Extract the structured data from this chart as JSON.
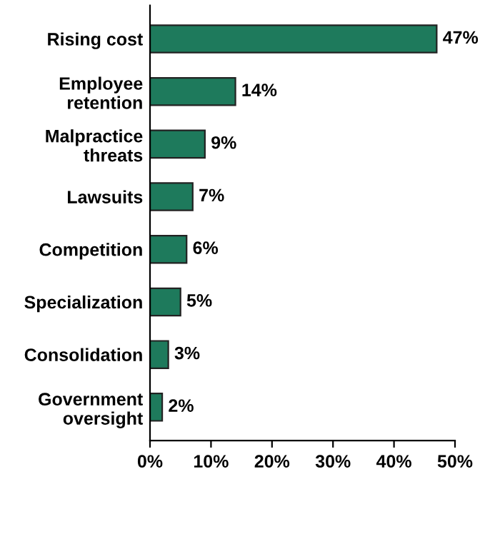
{
  "chart_data": {
    "type": "bar",
    "orientation": "horizontal",
    "categories": [
      "Rising cost",
      "Employee\nretention",
      "Malpractice\nthreats",
      "Lawsuits",
      "Competition",
      "Specialization",
      "Consolidation",
      "Government\noversight"
    ],
    "values": [
      47,
      14,
      9,
      7,
      6,
      5,
      3,
      2
    ],
    "value_labels": [
      "47%",
      "14%",
      "9%",
      "7%",
      "6%",
      "5%",
      "3%",
      "2%"
    ],
    "color": "#1e7a5c",
    "xlim": [
      0,
      50
    ],
    "xticks": [
      {
        "value": 0,
        "label": "0%"
      },
      {
        "value": 10,
        "label": "10%"
      },
      {
        "value": 20,
        "label": "20%"
      },
      {
        "value": 30,
        "label": "30%"
      },
      {
        "value": 40,
        "label": "40%"
      },
      {
        "value": 50,
        "label": "50%"
      }
    ],
    "grid": false,
    "legend": false
  }
}
